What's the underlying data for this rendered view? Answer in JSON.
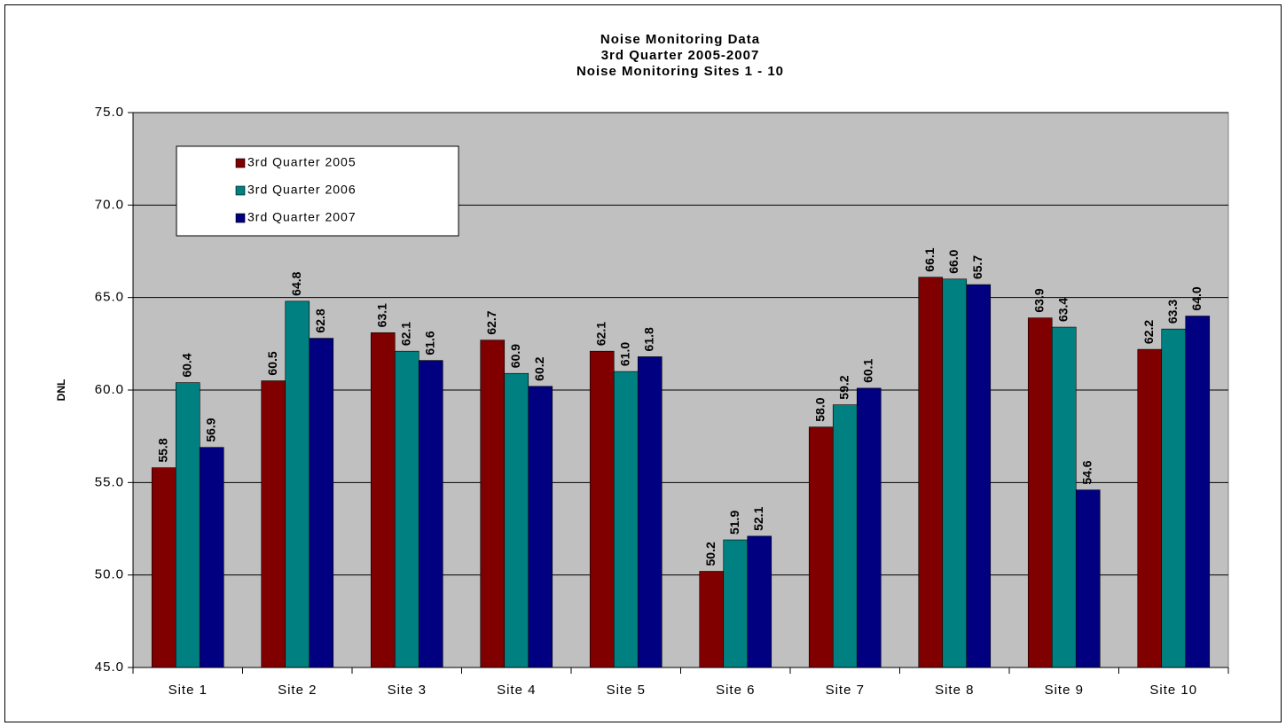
{
  "chart_data": {
    "type": "bar",
    "title": "Noise Monitoring Data",
    "subtitle": [
      "3rd Quarter 2005-2007",
      "Noise Monitoring Sites 1 - 10"
    ],
    "y_label": "DNL",
    "categories": [
      "Site 1",
      "Site 2",
      "Site 3",
      "Site 4",
      "Site 5",
      "Site 6",
      "Site 7",
      "Site 8",
      "Site 9",
      "Site 10"
    ],
    "series": [
      {
        "name": "3rd Quarter 2005",
        "color": "#800000",
        "values": [
          55.8,
          60.5,
          63.1,
          62.7,
          62.1,
          50.2,
          58.0,
          66.1,
          63.9,
          62.2
        ],
        "value_labels": [
          "55.8",
          "60.5",
          "63.1",
          "62.7",
          "62.1",
          "50.2",
          "58.0",
          "66.1",
          "63.9",
          "62.2"
        ]
      },
      {
        "name": "3rd Quarter 2006",
        "color": "#008080",
        "values": [
          60.4,
          64.8,
          62.1,
          60.9,
          61.0,
          51.9,
          59.2,
          66.0,
          63.4,
          63.3
        ],
        "value_labels": [
          "60.4",
          "64.8",
          "62.1",
          "60.9",
          "61.0",
          "51.9",
          "59.2",
          "66.0",
          "63.4",
          "63.3"
        ]
      },
      {
        "name": "3rd Quarter 2007",
        "color": "#000080",
        "values": [
          56.9,
          62.8,
          61.6,
          60.2,
          61.8,
          52.1,
          60.1,
          65.7,
          54.6,
          64.0
        ],
        "value_labels": [
          "56.9",
          "62.8",
          "61.6",
          "60.2",
          "61.8",
          "52.1",
          "60.1",
          "65.7",
          "54.6",
          "64.0"
        ]
      }
    ],
    "ylim": [
      45,
      75
    ],
    "yticks": [
      {
        "value": 45,
        "label": "45.0"
      },
      {
        "value": 50,
        "label": "50.0"
      },
      {
        "value": 55,
        "label": "55.0"
      },
      {
        "value": 60,
        "label": "60.0"
      },
      {
        "value": 65,
        "label": "65.0"
      },
      {
        "value": 70,
        "label": "70.0"
      },
      {
        "value": 75,
        "label": "75.0"
      }
    ],
    "grid": true,
    "legend": "upper left",
    "background": "#c0c0c0"
  }
}
